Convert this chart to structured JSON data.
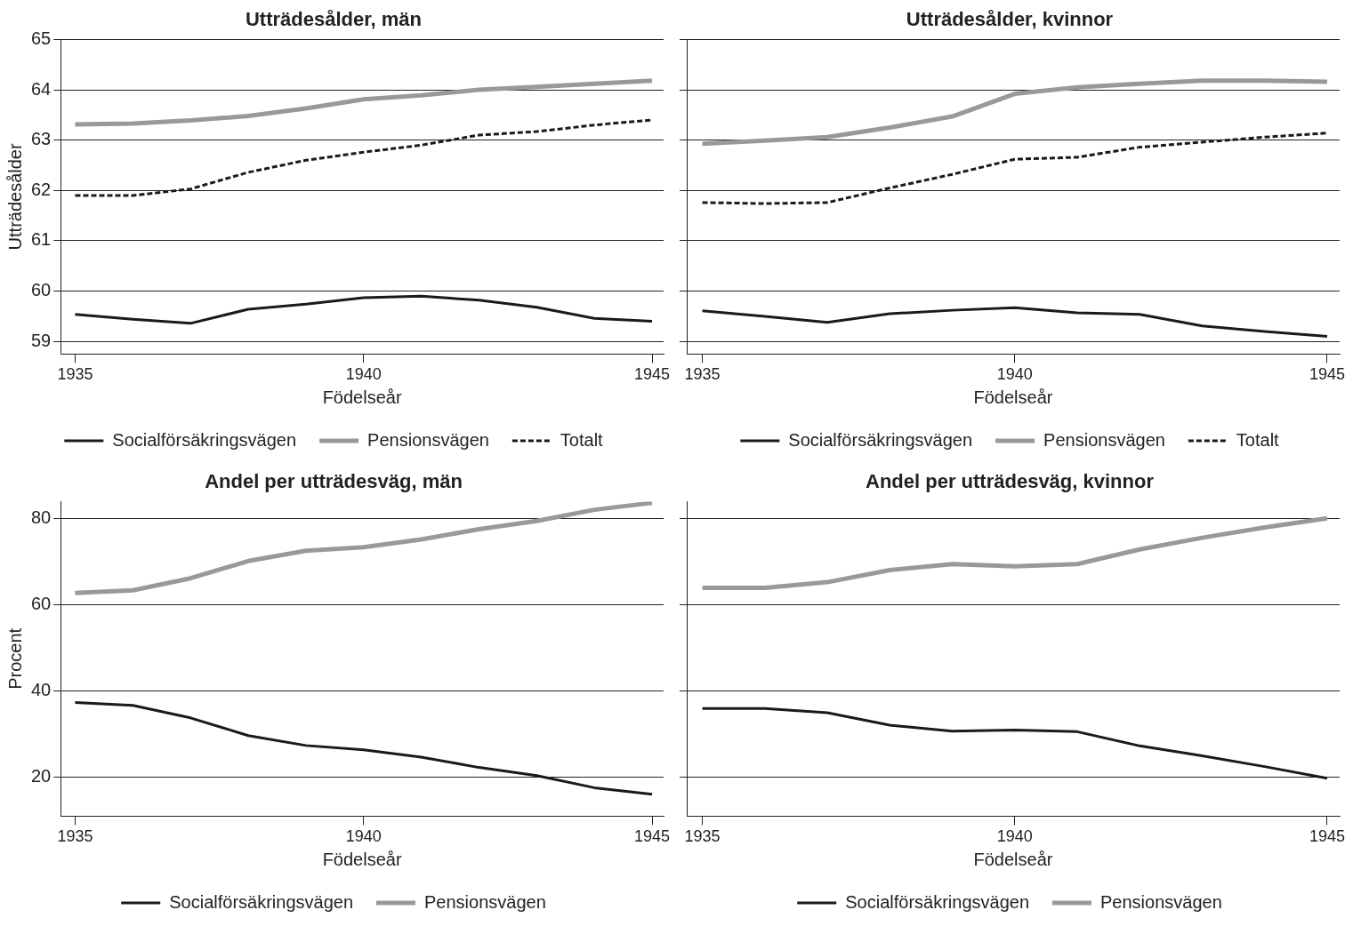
{
  "chart_data": [
    {
      "type": "line",
      "title": "Utträdesålder, män",
      "xlabel": "Födelseår",
      "ylabel": "Utträdesålder",
      "x": [
        1935,
        1936,
        1937,
        1938,
        1939,
        1940,
        1941,
        1942,
        1943,
        1944,
        1945
      ],
      "xlim": [
        1934.75,
        1945.2
      ],
      "xticks": [
        1935,
        1940,
        1945
      ],
      "ylim": [
        58.75,
        65
      ],
      "yticks": [
        59,
        60,
        61,
        62,
        63,
        64,
        65
      ],
      "grid": "y",
      "legend": "bottom",
      "marker": "none",
      "series": [
        {
          "name": "Socialförsäkringsvägen",
          "color": "#1a1a1a",
          "line_style": "solid",
          "values": [
            59.54,
            59.44,
            59.36,
            59.64,
            59.74,
            59.87,
            59.9,
            59.82,
            59.68,
            59.46,
            59.4
          ]
        },
        {
          "name": "Pensionsvägen",
          "color": "#999999",
          "line_style": "solid",
          "values": [
            63.31,
            63.33,
            63.39,
            63.48,
            63.63,
            63.81,
            63.89,
            64.0,
            64.06,
            64.12,
            64.18
          ]
        },
        {
          "name": "Totalt",
          "color": "#1a1a1a",
          "line_style": "dashed",
          "values": [
            61.9,
            61.9,
            62.03,
            62.36,
            62.6,
            62.76,
            62.9,
            63.1,
            63.17,
            63.3,
            63.4
          ]
        }
      ]
    },
    {
      "type": "line",
      "title": "Utträdesålder, kvinnor",
      "xlabel": "Födelseår",
      "x": [
        1935,
        1936,
        1937,
        1938,
        1939,
        1940,
        1941,
        1942,
        1943,
        1944,
        1945
      ],
      "xlim": [
        1934.75,
        1945.2
      ],
      "xticks": [
        1935,
        1940,
        1945
      ],
      "ylim": [
        58.75,
        65
      ],
      "yticks": [
        59,
        60,
        61,
        62,
        63,
        64,
        65
      ],
      "tick_labels": "x",
      "grid": "y",
      "legend": "bottom",
      "marker": "none",
      "series": [
        {
          "name": "Socialförsäkringsvägen",
          "color": "#1a1a1a",
          "line_style": "solid",
          "values": [
            59.61,
            59.5,
            59.38,
            59.55,
            59.62,
            59.67,
            59.57,
            59.54,
            59.31,
            59.2,
            59.1
          ]
        },
        {
          "name": "Pensionsvägen",
          "color": "#999999",
          "line_style": "solid",
          "values": [
            62.93,
            62.99,
            63.06,
            63.25,
            63.47,
            63.92,
            64.05,
            64.12,
            64.18,
            64.18,
            64.16
          ]
        },
        {
          "name": "Totalt",
          "color": "#1a1a1a",
          "line_style": "dashed",
          "values": [
            61.76,
            61.74,
            61.76,
            62.05,
            62.32,
            62.62,
            62.66,
            62.86,
            62.96,
            63.06,
            63.14
          ]
        }
      ]
    },
    {
      "type": "line",
      "title": "Andel per utträdesväg, män",
      "xlabel": "Födelseår",
      "ylabel": "Procent",
      "x": [
        1935,
        1936,
        1937,
        1938,
        1939,
        1940,
        1941,
        1942,
        1943,
        1944,
        1945
      ],
      "xlim": [
        1934.75,
        1945.2
      ],
      "xticks": [
        1935,
        1940,
        1945
      ],
      "ylim": [
        11,
        84
      ],
      "yticks": [
        20,
        40,
        60,
        80
      ],
      "grid": "y",
      "legend": "bottom",
      "marker": "none",
      "series": [
        {
          "name": "Socialförsäkringsvägen",
          "color": "#1a1a1a",
          "line_style": "solid",
          "values": [
            37.4,
            36.7,
            33.8,
            29.7,
            27.4,
            26.4,
            24.7,
            22.3,
            20.4,
            17.6,
            16.1
          ]
        },
        {
          "name": "Pensionsvägen",
          "color": "#999999",
          "line_style": "solid",
          "values": [
            62.8,
            63.4,
            66.2,
            70.2,
            72.6,
            73.4,
            75.2,
            77.6,
            79.5,
            82.1,
            83.7
          ]
        }
      ]
    },
    {
      "type": "line",
      "title": "Andel per utträdesväg, kvinnor",
      "xlabel": "Födelseår",
      "x": [
        1935,
        1936,
        1937,
        1938,
        1939,
        1940,
        1941,
        1942,
        1943,
        1944,
        1945
      ],
      "xlim": [
        1934.75,
        1945.2
      ],
      "xticks": [
        1935,
        1940,
        1945
      ],
      "ylim": [
        11,
        84
      ],
      "yticks": [
        20,
        40,
        60,
        80
      ],
      "tick_labels": "x",
      "grid": "y",
      "legend": "bottom",
      "marker": "none",
      "series": [
        {
          "name": "Socialförsäkringsvägen",
          "color": "#1a1a1a",
          "line_style": "solid",
          "values": [
            36.0,
            36.0,
            35.0,
            32.1,
            30.7,
            31.0,
            30.6,
            27.3,
            25.0,
            22.5,
            19.8
          ]
        },
        {
          "name": "Pensionsvägen",
          "color": "#999999",
          "line_style": "solid",
          "values": [
            64.0,
            64.0,
            65.3,
            68.1,
            69.5,
            69.0,
            69.5,
            72.9,
            75.6,
            78.0,
            80.1
          ]
        }
      ]
    }
  ]
}
